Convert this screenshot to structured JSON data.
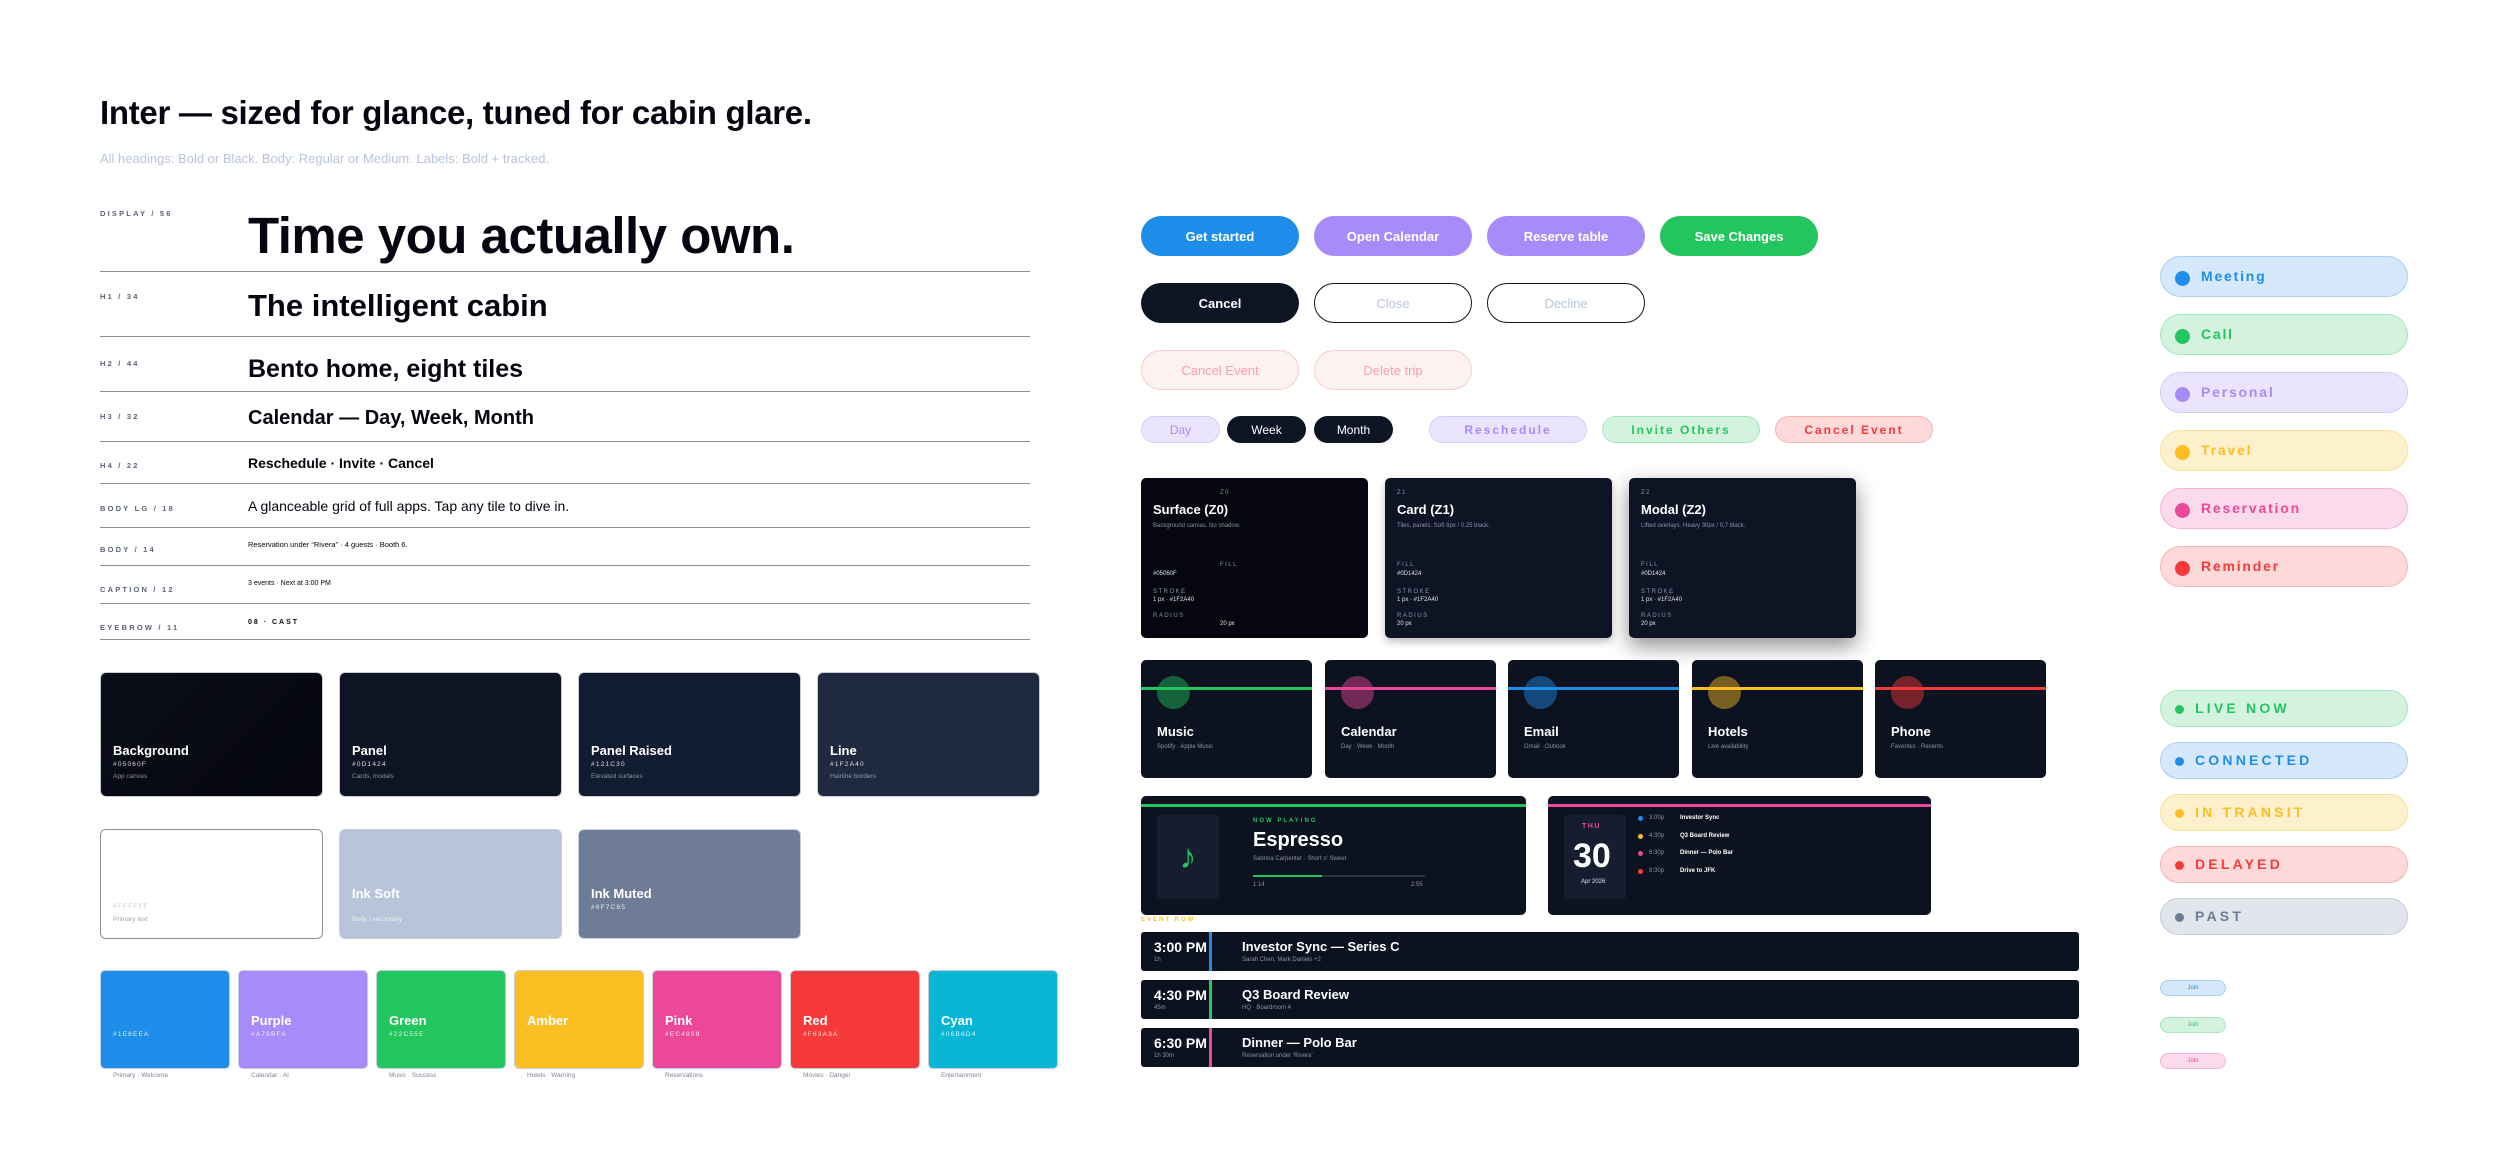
{
  "header": {
    "title": "Inter — sized for glance, tuned for cabin glare.",
    "subtitle": "All headings: Bold or Black. Body: Regular or Medium. Labels: Bold + tracked."
  },
  "type_scale": [
    {
      "label": "DISPLAY / 56",
      "sample": "Time you actually own."
    },
    {
      "label": "H1 / 34",
      "sample": "The intelligent cabin"
    },
    {
      "label": "H2 / 44",
      "sample": "Bento home, eight tiles"
    },
    {
      "label": "H3 / 32",
      "sample": "Calendar — Day, Week, Month"
    },
    {
      "label": "H4 / 22",
      "sample": "Reschedule · Invite · Cancel"
    },
    {
      "label": "BODY LG / 18",
      "sample": "A glanceable grid of full apps. Tap any tile to dive in."
    },
    {
      "label": "BODY / 14",
      "sample": "Reservation under “Rivera” · 4 guests · Booth 6."
    },
    {
      "label": "CAPTION / 12",
      "sample": "3 events · Next at 3:00 PM"
    },
    {
      "label": "EYEBROW / 11",
      "sample": "08 · CAST"
    }
  ],
  "neutrals": [
    {
      "name": "Background",
      "hex": "#05060F",
      "desc": "App canvas",
      "color": "#05060f"
    },
    {
      "name": "Panel",
      "hex": "#0D1424",
      "desc": "Cards, modals",
      "color": "#0d1424"
    },
    {
      "name": "Panel Raised",
      "hex": "#121C30",
      "desc": "Elevated surfaces",
      "color": "#121c30"
    },
    {
      "name": "Line",
      "hex": "#1F2A40",
      "desc": "Hairline borders",
      "color": "#1f2a40"
    }
  ],
  "inks": [
    {
      "name": "",
      "hex": "#FFFFFF",
      "desc": "Primary text",
      "color": "#ffffff"
    },
    {
      "name": "Ink Soft",
      "hex": "",
      "desc": "Body / secondary",
      "color": "#b8c4da"
    },
    {
      "name": "Ink Muted",
      "hex": "#6F7C95",
      "desc": "",
      "color": "#6f7c95"
    }
  ],
  "accents": [
    {
      "name": "",
      "hex": "#1E8EEA",
      "caption": "Primary · Welcome",
      "color": "#1e8eea"
    },
    {
      "name": "Purple",
      "hex": "#A78BFA",
      "caption": "Calendar · AI",
      "color": "#a78bfa"
    },
    {
      "name": "Green",
      "hex": "#22C55E",
      "caption": "Music · Success",
      "color": "#22c55e"
    },
    {
      "name": "Amber",
      "hex": "",
      "caption": "Hotels · Warning",
      "color": "#fbbf24"
    },
    {
      "name": "Pink",
      "hex": "#EC4899",
      "caption": "Reservations",
      "color": "#ec4899"
    },
    {
      "name": "Red",
      "hex": "#F63A3A",
      "caption": "Movies · Danger",
      "color": "#f63a3a"
    },
    {
      "name": "Cyan",
      "hex": "#06B6D4",
      "caption": "Entertainment",
      "color": "#06b6d4"
    }
  ],
  "buttons": {
    "get_started": "Get started",
    "open_calendar": "Open Calendar",
    "reserve_table": "Reserve table",
    "save_changes": "Save Changes",
    "cancel": "Cancel",
    "close": "Close",
    "decline": "Decline",
    "cancel_event": "Cancel Event",
    "delete_trip": "Delete trip"
  },
  "segments": {
    "day": "Day",
    "week": "Week",
    "month": "Month"
  },
  "action_chips": {
    "reschedule": "Reschedule",
    "invite_others": "Invite Others",
    "cancel_event": "Cancel Event"
  },
  "surfaces": [
    {
      "z": "Z0",
      "title": "Surface (Z0)",
      "desc": "Background canvas. No shadow.",
      "fill_label": "FILL",
      "fill": "#05060F",
      "stroke_label": "STROKE",
      "stroke": "1 px · #1F2A40",
      "radius_label": "RADIUS",
      "radius": "20 px"
    },
    {
      "z": "Z1",
      "title": "Card (Z1)",
      "desc": "Tiles, panels. Soft 8px / 0.25 black.",
      "fill_label": "FILL",
      "fill": "#0D1424",
      "stroke_label": "STROKE",
      "stroke": "1 px · #1F2A40",
      "radius_label": "RADIUS",
      "radius": "20 px"
    },
    {
      "z": "Z2",
      "title": "Modal (Z2)",
      "desc": "Lifted overlays. Heavy 30px / 0.7 black.",
      "fill_label": "FILL",
      "fill": "#0D1424",
      "stroke_label": "STROKE",
      "stroke": "1 px · #1F2A40",
      "radius_label": "RADIUS",
      "radius": "20 px"
    }
  ],
  "app_tiles": [
    {
      "name": "Music",
      "desc": "Spotify · Apple Music",
      "color": "#22c55e"
    },
    {
      "name": "Calendar",
      "desc": "Day · Week · Month",
      "color": "#ec4899"
    },
    {
      "name": "Email",
      "desc": "Gmail · Outlook",
      "color": "#1e8eea"
    },
    {
      "name": "Hotels",
      "desc": "Live availability",
      "color": "#fbbf24"
    },
    {
      "name": "Phone",
      "desc": "Favorites · Recents",
      "color": "#f63a3a"
    }
  ],
  "now_playing": {
    "eyebrow": "NOW PLAYING",
    "track": "Espresso",
    "artist": "Sabrina Carpenter · Short n' Sweet",
    "elapsed": "1:14",
    "duration": "2:55",
    "progress": 0.4,
    "icon": "music-note-icon"
  },
  "calendar_widget": {
    "weekday": "THU",
    "day": "30",
    "month": "Apr 2026",
    "items": [
      {
        "time": "3:00p",
        "title": "Investor Sync",
        "color": "#1e8eea"
      },
      {
        "time": "4:30p",
        "title": "Q3 Board Review",
        "color": "#fbbf24"
      },
      {
        "time": "6:30p",
        "title": "Dinner — Polo Bar",
        "color": "#ec4899"
      },
      {
        "time": "8:30p",
        "title": "Drive to JFK",
        "color": "#f63a3a"
      }
    ]
  },
  "event_row_label": "EVENT ROW",
  "events": [
    {
      "time": "3:00 PM",
      "dur": "1h",
      "title": "Investor Sync — Series C",
      "sub": "Sarah Chen, Mark Daniels +2",
      "color": "#1e8eea"
    },
    {
      "time": "4:30 PM",
      "dur": "45m",
      "title": "Q3 Board Review",
      "sub": "HQ · Boardroom 4",
      "color": "#22c55e"
    },
    {
      "time": "6:30 PM",
      "dur": "1h 30m",
      "title": "Dinner — Polo Bar",
      "sub": "Reservation under ‘Rivera’",
      "color": "#ec4899"
    }
  ],
  "categories": [
    {
      "label": "Meeting",
      "color": "#1e8eea",
      "bg": "#d6e8fb"
    },
    {
      "label": "Call",
      "color": "#22c55e",
      "bg": "#d4f3df"
    },
    {
      "label": "Personal",
      "color": "#a78bfa",
      "bg": "#ebe4fd"
    },
    {
      "label": "Travel",
      "color": "#fbbf24",
      "bg": "#fdf0cc"
    },
    {
      "label": "Reservation",
      "color": "#ec4899",
      "bg": "#fbdbeb"
    },
    {
      "label": "Reminder",
      "color": "#f63a3a",
      "bg": "#fdd9d9"
    }
  ],
  "statuses": [
    {
      "label": "LIVE NOW",
      "color": "#22c55e",
      "bg": "#d4f3df"
    },
    {
      "label": "CONNECTED",
      "color": "#1e8eea",
      "bg": "#d6e8fb"
    },
    {
      "label": "IN TRANSIT",
      "color": "#fbbf24",
      "bg": "#fdf0cc"
    },
    {
      "label": "DELAYED",
      "color": "#f63a3a",
      "bg": "#fdd9d9"
    },
    {
      "label": "PAST",
      "color": "#6f7c95",
      "bg": "#e2e5eb"
    }
  ],
  "mini_chips": [
    {
      "label": "Join",
      "color": "#1e8eea",
      "bg": "#d6e8fb"
    },
    {
      "label": "Join",
      "color": "#22c55e",
      "bg": "#d4f3df"
    },
    {
      "label": "Join",
      "color": "#ec4899",
      "bg": "#fbdbeb"
    }
  ]
}
